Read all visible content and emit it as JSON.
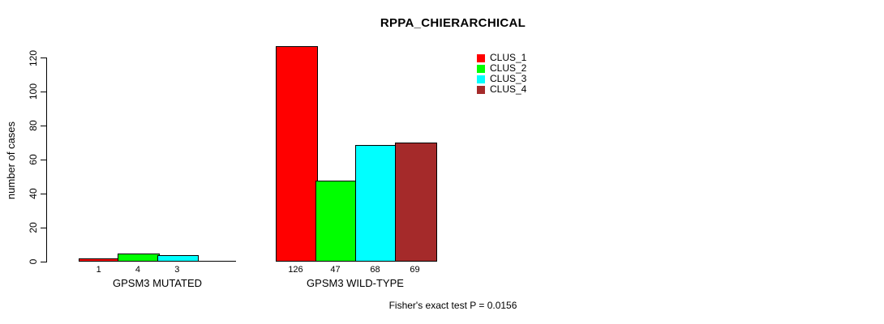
{
  "title": "RPPA_CHIERARCHICAL",
  "footnote": "Fisher's exact test P = 0.0156",
  "chart_data": {
    "type": "bar",
    "title": "RPPA_CHIERARCHICAL",
    "xlabel": "",
    "ylabel": "number of cases",
    "ylim": [
      0,
      120
    ],
    "yticks": [
      0,
      20,
      40,
      60,
      80,
      100,
      120
    ],
    "grid": false,
    "legend_position": "top-right",
    "categories": [
      "GPSM3 MUTATED",
      "GPSM3 WILD-TYPE"
    ],
    "series": [
      {
        "name": "CLUS_1",
        "color": "#FF0000",
        "values": [
          1,
          126
        ]
      },
      {
        "name": "CLUS_2",
        "color": "#00FF00",
        "values": [
          4,
          47
        ]
      },
      {
        "name": "CLUS_3",
        "color": "#00FFFF",
        "values": [
          3,
          68
        ]
      },
      {
        "name": "CLUS_4",
        "color": "#A52A2A",
        "values": [
          0,
          69
        ]
      }
    ],
    "bar_value_labels": [
      [
        "1",
        "4",
        "3",
        ""
      ],
      [
        "126",
        "47",
        "68",
        "69"
      ]
    ],
    "annotation": "Fisher's exact test P = 0.0156"
  }
}
